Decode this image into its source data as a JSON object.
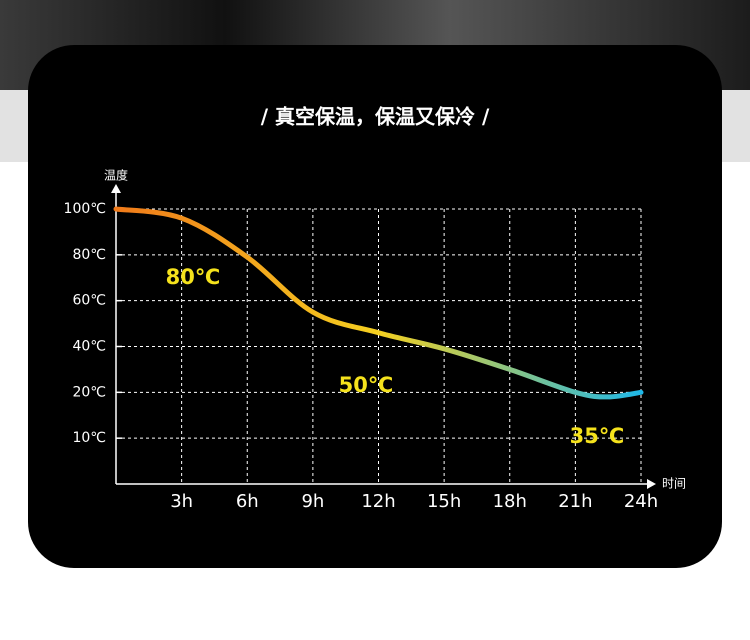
{
  "chart_data": {
    "type": "line",
    "title": "/ 真空保温，保温又保冷 /",
    "y_label": "温度",
    "x_label": "时间",
    "x": [
      0,
      3,
      6,
      9,
      12,
      15,
      18,
      21,
      22.5,
      24
    ],
    "series": [
      {
        "name": "温度",
        "color": "#f5d020",
        "gradient": [
          "#f07a1a",
          "#f5d020",
          "#1fb8e8"
        ],
        "values": [
          100,
          96,
          79,
          55,
          46,
          39,
          30,
          20,
          19,
          20
        ]
      }
    ],
    "xlim": [
      0,
      24
    ],
    "xticks": [
      {
        "value": 3,
        "label": "3h"
      },
      {
        "value": 6,
        "label": "6h"
      },
      {
        "value": 9,
        "label": "9h"
      },
      {
        "value": 12,
        "label": "12h"
      },
      {
        "value": 15,
        "label": "15h"
      },
      {
        "value": 18,
        "label": "18h"
      },
      {
        "value": 21,
        "label": "21h"
      },
      {
        "value": 24,
        "label": "24h"
      }
    ],
    "ylim": [
      0,
      100
    ],
    "yticks": [
      {
        "value": 100,
        "label": "100℃"
      },
      {
        "value": 80,
        "label": "80℃"
      },
      {
        "value": 60,
        "label": "60℃"
      },
      {
        "value": 40,
        "label": "40℃"
      },
      {
        "value": 20,
        "label": "20℃"
      },
      {
        "value": 10,
        "label": "10℃"
      }
    ],
    "annotations": [
      "80℃",
      "50℃",
      "35℃"
    ],
    "annotation_color": "#f5e21c",
    "grid": true
  }
}
